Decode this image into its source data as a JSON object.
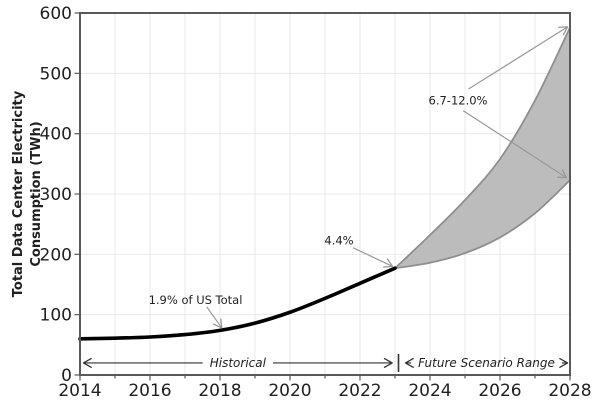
{
  "chart_data": {
    "type": "line",
    "title": "",
    "ylabel_lines": [
      "Total Data Center Electricity",
      "Consumption (TWh)"
    ],
    "xlabel": "",
    "xlim": [
      2014,
      2028
    ],
    "ylim": [
      0,
      600
    ],
    "x_ticks": [
      2014,
      2016,
      2018,
      2020,
      2022,
      2024,
      2026,
      2028
    ],
    "y_ticks": [
      0,
      100,
      200,
      300,
      400,
      500,
      600
    ],
    "grid": true,
    "legend": "none",
    "series": [
      {
        "name": "Historical",
        "x": [
          2014,
          2015,
          2016,
          2017,
          2018,
          2019,
          2020,
          2021,
          2022,
          2023
        ],
        "values": [
          60,
          61,
          63,
          67,
          74,
          86,
          104,
          127,
          152,
          177
        ],
        "color": "#000000"
      }
    ],
    "band": {
      "name": "Future Scenario Range",
      "x": [
        2023,
        2024,
        2025,
        2026,
        2027,
        2028
      ],
      "upper": [
        177,
        232,
        290,
        358,
        455,
        576
      ],
      "lower": [
        177,
        186,
        202,
        228,
        268,
        323
      ],
      "fill": "#bcbcbc",
      "edge": "#8f8f8f"
    },
    "annotations": [
      {
        "text": "1.9% of US Total",
        "x": 2017.3,
        "y": 124,
        "arrows": [
          {
            "x1": 2017.62,
            "y1": 113,
            "x2": 2018.05,
            "y2": 78
          }
        ]
      },
      {
        "text": "4.4%",
        "x": 2021.4,
        "y": 223,
        "arrows": [
          {
            "x1": 2021.8,
            "y1": 211,
            "x2": 2022.93,
            "y2": 180
          }
        ]
      },
      {
        "text": "6.7-12.0%",
        "x": 2024.8,
        "y": 455,
        "arrows": [
          {
            "x1": 2025.1,
            "y1": 474,
            "x2": 2027.93,
            "y2": 577
          },
          {
            "x1": 2024.95,
            "y1": 438,
            "x2": 2027.9,
            "y2": 327
          }
        ]
      }
    ],
    "range_annotations": [
      {
        "label": "Historical",
        "x_start": 2014.1,
        "x_end": 2022.92,
        "y": 20
      },
      {
        "label": "Future Scenario Range",
        "x_start": 2023.3,
        "x_end": 2027.93,
        "y": 20
      }
    ],
    "separator": {
      "x": 2023.1,
      "y": 20
    },
    "colors": {
      "line": "#000000",
      "band_fill": "#bcbcbc",
      "band_edge": "#8f8f8f",
      "grid": "#e9e9e9",
      "spine": "#595959",
      "text": "#1f1f1f",
      "annotation_arrow": "#999999",
      "range_arrow": "#333333"
    }
  }
}
